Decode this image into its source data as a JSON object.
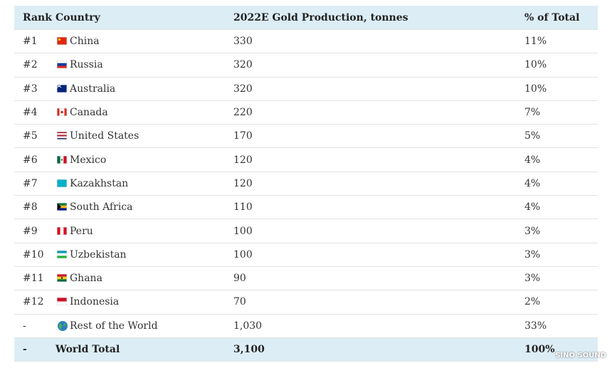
{
  "table": {
    "columns": [
      "Rank",
      "Country",
      "2022E Gold Production, tonnes",
      "% of Total"
    ],
    "rows": [
      [
        "#1",
        "China",
        "330",
        "11%"
      ],
      [
        "#2",
        "Russia",
        "320",
        "10%"
      ],
      [
        "#3",
        "Australia",
        "320",
        "10%"
      ],
      [
        "#4",
        "Canada",
        "220",
        "7%"
      ],
      [
        "#5",
        "United States",
        "170",
        "5%"
      ],
      [
        "#6",
        "Mexico",
        "120",
        "4%"
      ],
      [
        "#7",
        "Kazakhstan",
        "120",
        "4%"
      ],
      [
        "#8",
        "South Africa",
        "110",
        "4%"
      ],
      [
        "#9",
        "Peru",
        "100",
        "3%"
      ],
      [
        "#10",
        "Uzbekistan",
        "100",
        "3%"
      ],
      [
        "#11",
        "Ghana",
        "90",
        "3%"
      ],
      [
        "#12",
        "Indonesia",
        "70",
        "2%"
      ],
      [
        "-",
        "Rest of the World",
        "1,030",
        "33%"
      ],
      [
        "-",
        "World Total",
        "3,100",
        "100%"
      ]
    ]
  },
  "watermark": "SINO SOUND"
}
